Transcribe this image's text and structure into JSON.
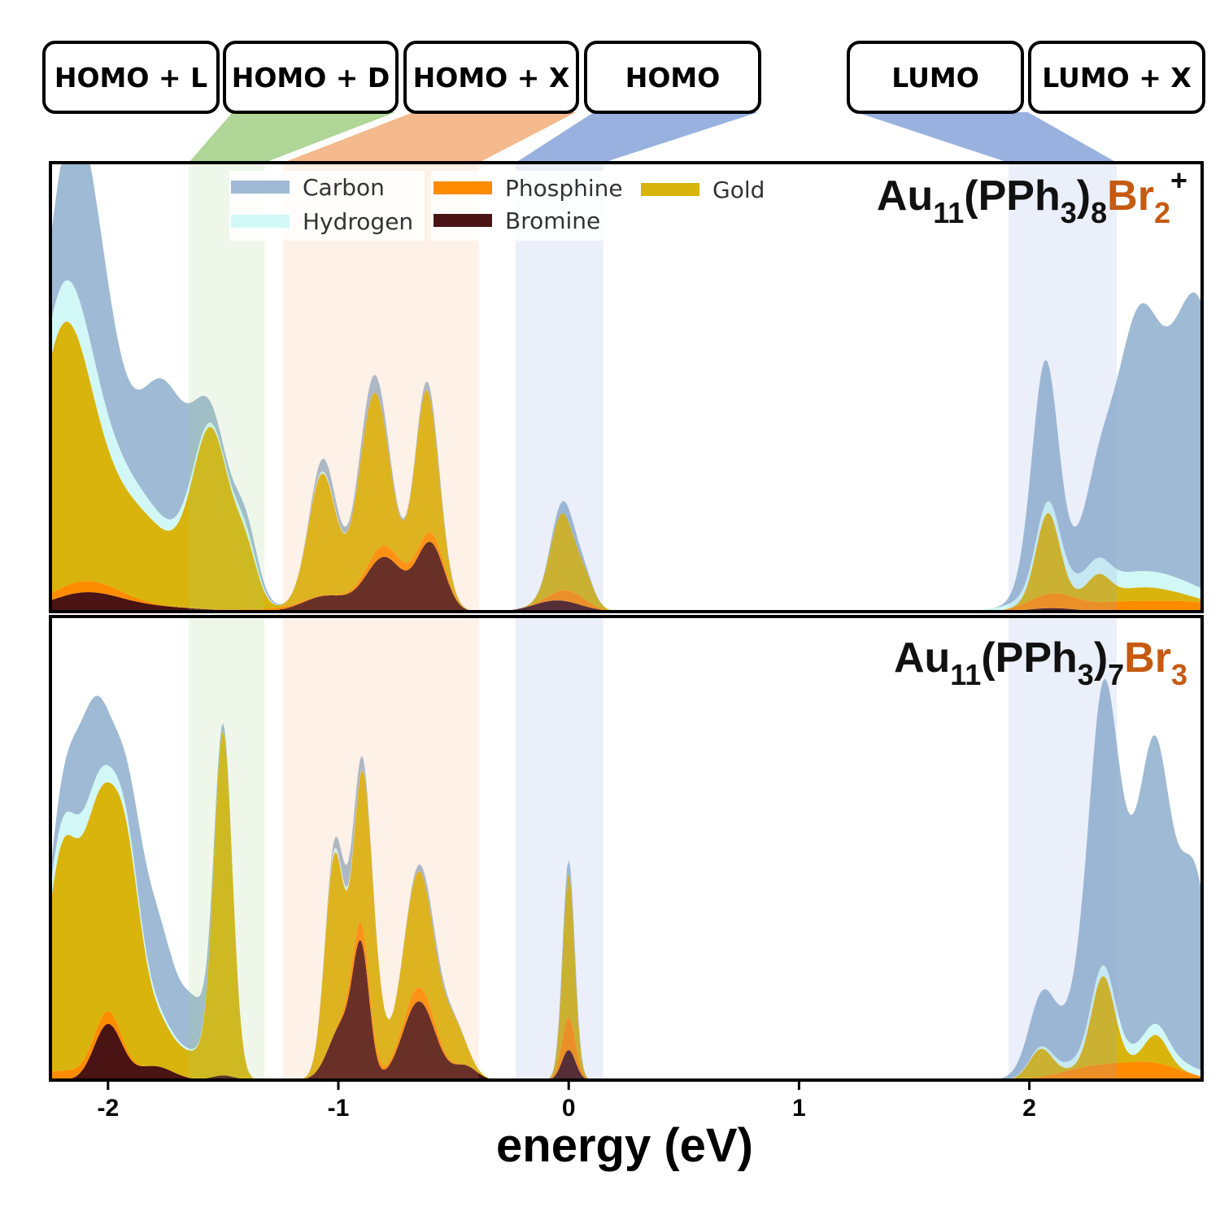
{
  "chart_data": {
    "type": "area",
    "xlabel": "energy (eV)",
    "xlim": [
      -2.25,
      2.75
    ],
    "x_ticks": [
      "-2",
      "-1",
      "0",
      "1",
      "2"
    ],
    "grid": false,
    "legend_position": "top-left",
    "legend": [
      {
        "name": "Carbon",
        "color": "#9ebad4"
      },
      {
        "name": "Hydrogen",
        "color": "#d2f7f7"
      },
      {
        "name": "Phosphine",
        "color": "#ff8c00"
      },
      {
        "name": "Gold",
        "color": "#d8b40c"
      },
      {
        "name": "Bromine",
        "color": "#4a1414"
      }
    ],
    "orbital_labels": [
      {
        "label": "HOMO + L",
        "color": "#a6d08c",
        "range": [
          -1.65,
          -1.32
        ]
      },
      {
        "label": "HOMO + D",
        "color": "#a6d08c",
        "range": [
          -1.65,
          -1.32
        ]
      },
      {
        "label": "HOMO + X",
        "color": "#f3b17f",
        "range": [
          -1.24,
          -0.39
        ]
      },
      {
        "label": "HOMO",
        "color": "#8ea9dc",
        "range": [
          -0.23,
          0.15
        ]
      },
      {
        "label": "LUMO",
        "color": "#8ea9dc",
        "range": [
          1.91,
          2.38
        ]
      },
      {
        "label": "LUMO + X",
        "color": "#8ea9dc",
        "range": [
          1.91,
          2.38
        ]
      }
    ],
    "panels": [
      {
        "formula": {
          "base": "Au",
          "sub1": "11",
          "mid": "(PPh",
          "sub2": "3",
          "close": ")",
          "sub3": "8",
          "br": "Br",
          "sub4": "2",
          "sup": "+"
        },
        "peaks": {
          "Bromine": [
            [
              -2.1,
              0.04,
              0.15
            ],
            [
              -1.8,
              0.01,
              0.2
            ],
            [
              -1.05,
              0.035,
              0.1
            ],
            [
              -0.8,
              0.12,
              0.08
            ],
            [
              -0.6,
              0.15,
              0.06
            ],
            [
              -0.05,
              0.025,
              0.1
            ],
            [
              2.1,
              0.008,
              0.1
            ]
          ],
          "Phosphine": [
            [
              -2.1,
              0.025,
              0.15
            ],
            [
              -1.3,
              0.005,
              0.15
            ],
            [
              -0.8,
              0.025,
              0.08
            ],
            [
              -0.6,
              0.02,
              0.06
            ],
            [
              0.0,
              0.025,
              0.07
            ],
            [
              2.1,
              0.03,
              0.1
            ],
            [
              2.4,
              0.02,
              0.15
            ],
            [
              2.7,
              0.02,
              0.15
            ]
          ],
          "Gold": [
            [
              -2.2,
              0.52,
              0.12
            ],
            [
              -1.9,
              0.2,
              0.2
            ],
            [
              -1.55,
              0.36,
              0.08
            ],
            [
              -1.4,
              0.1,
              0.05
            ],
            [
              -1.07,
              0.27,
              0.06
            ],
            [
              -0.85,
              0.36,
              0.065
            ],
            [
              -0.62,
              0.32,
              0.05
            ],
            [
              -0.03,
              0.17,
              0.05
            ],
            [
              0.07,
              0.05,
              0.04
            ],
            [
              2.08,
              0.18,
              0.05
            ],
            [
              2.3,
              0.05,
              0.05
            ],
            [
              2.5,
              0.03,
              0.15
            ]
          ],
          "Hydrogen": [
            [
              -2.15,
              0.09,
              0.18
            ],
            [
              -1.8,
              0.02,
              0.2
            ],
            [
              -1.4,
              0.015,
              0.05
            ],
            [
              -1.05,
              0.005,
              0.05
            ],
            [
              2.2,
              0.03,
              0.2
            ],
            [
              2.6,
              0.03,
              0.2
            ]
          ],
          "Carbon": [
            [
              -2.1,
              0.4,
              0.12
            ],
            [
              -1.75,
              0.3,
              0.1
            ],
            [
              -1.4,
              0.03,
              0.06
            ],
            [
              -1.05,
              0.03,
              0.05
            ],
            [
              -0.85,
              0.04,
              0.06
            ],
            [
              -0.6,
              0.02,
              0.05
            ],
            [
              0.0,
              0.03,
              0.05
            ],
            [
              2.06,
              0.32,
              0.06
            ],
            [
              2.35,
              0.25,
              0.1
            ],
            [
              2.48,
              0.35,
              0.08
            ],
            [
              2.6,
              0.25,
              0.1
            ],
            [
              2.75,
              0.55,
              0.1
            ]
          ]
        }
      },
      {
        "formula": {
          "base": "Au",
          "sub1": "11",
          "mid": "(PPh",
          "sub2": "3",
          "close": ")",
          "sub3": "7",
          "br": "Br",
          "sub4": "3",
          "sup": ""
        },
        "peaks": {
          "Bromine": [
            [
              -2.0,
              0.12,
              0.06
            ],
            [
              -1.8,
              0.03,
              0.08
            ],
            [
              -1.5,
              0.01,
              0.05
            ],
            [
              -0.98,
              0.12,
              0.06
            ],
            [
              -0.9,
              0.25,
              0.035
            ],
            [
              -0.65,
              0.17,
              0.07
            ],
            [
              -0.45,
              0.03,
              0.05
            ],
            [
              0.0,
              0.065,
              0.03
            ]
          ],
          "Phosphine": [
            [
              -2.0,
              0.025,
              0.06
            ],
            [
              -2.2,
              0.02,
              0.1
            ],
            [
              -0.9,
              0.04,
              0.05
            ],
            [
              -0.65,
              0.03,
              0.07
            ],
            [
              0.0,
              0.07,
              0.03
            ],
            [
              2.3,
              0.03,
              0.15
            ],
            [
              2.55,
              0.03,
              0.12
            ]
          ],
          "Gold": [
            [
              -2.2,
              0.45,
              0.07
            ],
            [
              -2.05,
              0.42,
              0.07
            ],
            [
              -1.92,
              0.38,
              0.06
            ],
            [
              -1.8,
              0.1,
              0.08
            ],
            [
              -1.5,
              0.72,
              0.04
            ],
            [
              -1.6,
              0.05,
              0.08
            ],
            [
              -1.02,
              0.38,
              0.04
            ],
            [
              -0.88,
              0.35,
              0.05
            ],
            [
              -0.65,
              0.25,
              0.07
            ],
            [
              -0.5,
              0.08,
              0.05
            ],
            [
              0.0,
              0.31,
              0.025
            ],
            [
              2.05,
              0.06,
              0.05
            ],
            [
              2.32,
              0.19,
              0.05
            ],
            [
              2.55,
              0.06,
              0.05
            ]
          ],
          "Hydrogen": [
            [
              -2.15,
              0.05,
              0.15
            ],
            [
              -1.85,
              0.01,
              0.15
            ],
            [
              -1.0,
              0.01,
              0.05
            ],
            [
              2.3,
              0.02,
              0.15
            ],
            [
              2.6,
              0.02,
              0.15
            ]
          ],
          "Carbon": [
            [
              -2.1,
              0.2,
              0.08
            ],
            [
              -1.8,
              0.2,
              0.1
            ],
            [
              -1.62,
              0.07,
              0.05
            ],
            [
              -1.5,
              0.01,
              0.03
            ],
            [
              -0.95,
              0.05,
              0.05
            ],
            [
              -0.6,
              0.02,
              0.06
            ],
            [
              0.0,
              0.03,
              0.03
            ],
            [
              2.07,
              0.12,
              0.07
            ],
            [
              2.32,
              0.5,
              0.08
            ],
            [
              2.55,
              0.45,
              0.07
            ],
            [
              2.72,
              0.4,
              0.07
            ],
            [
              2.45,
              0.2,
              0.12
            ]
          ]
        }
      }
    ]
  }
}
